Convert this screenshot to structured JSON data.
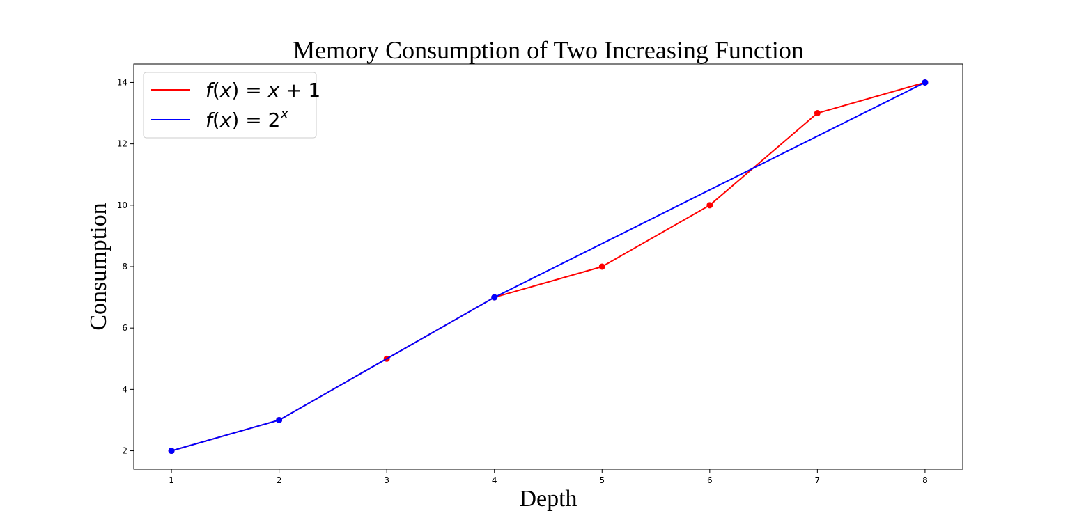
{
  "chart_data": {
    "type": "line",
    "title": "Memory Consumption of Two Increasing Function",
    "xlabel": "Depth",
    "ylabel": "Consumption",
    "xlim": [
      0.65,
      8.35
    ],
    "ylim": [
      1.4,
      14.6
    ],
    "xticks": [
      1,
      2,
      3,
      4,
      5,
      6,
      7,
      8
    ],
    "yticks": [
      2,
      4,
      6,
      8,
      10,
      12,
      14
    ],
    "grid": false,
    "legend_position": "upper-left",
    "series": [
      {
        "name": "f(x) = x + 1",
        "color": "#ff0000",
        "x": [
          1,
          2,
          3,
          4,
          5,
          6,
          7,
          8
        ],
        "y": [
          2,
          3,
          5,
          7,
          8,
          10,
          13,
          14
        ],
        "marker": "circle"
      },
      {
        "name": "f(x) = 2^x",
        "color": "#0000ff",
        "x": [
          1,
          2,
          4,
          8
        ],
        "y": [
          2,
          3,
          7,
          14
        ],
        "marker": "circle"
      }
    ]
  }
}
